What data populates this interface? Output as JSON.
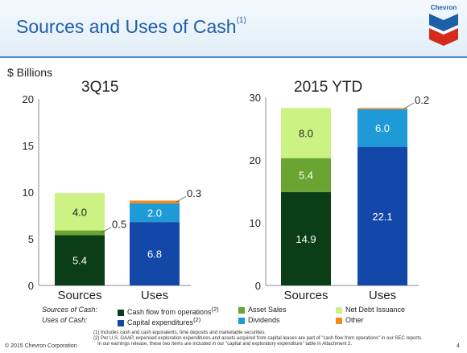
{
  "header": {
    "title": "Sources and Uses of Cash",
    "title_sup": "(1)",
    "logo_text": "Chevron"
  },
  "units_label": "$ Billions",
  "colors": {
    "cash_flow": "#0b3d16",
    "asset_sales": "#6aa431",
    "net_debt": "#ccf284",
    "capex": "#1448a8",
    "dividends": "#1e9ad6",
    "other": "#f48a1a"
  },
  "chart_data": [
    {
      "type": "bar",
      "stacked": true,
      "title": "3Q15",
      "categories": [
        "Sources",
        "Uses"
      ],
      "ylim": [
        0,
        20
      ],
      "yticks": [
        0,
        5,
        10,
        15,
        20
      ],
      "series": [
        {
          "name": "Cash flow from operations",
          "key": "cash_flow",
          "values": [
            5.4,
            0
          ]
        },
        {
          "name": "Asset Sales",
          "key": "asset_sales",
          "values": [
            0.5,
            0
          ]
        },
        {
          "name": "Net Debt Issuance",
          "key": "net_debt",
          "values": [
            4.0,
            0
          ]
        },
        {
          "name": "Capital expenditures",
          "key": "capex",
          "values": [
            0,
            6.8
          ]
        },
        {
          "name": "Dividends",
          "key": "dividends",
          "values": [
            0,
            2.0
          ]
        },
        {
          "name": "Other",
          "key": "other",
          "values": [
            0,
            0.3
          ]
        }
      ],
      "data_labels": [
        {
          "category": 0,
          "series": 0,
          "text": "5.4",
          "placement": "inside",
          "color": "#ffffff"
        },
        {
          "category": 0,
          "series": 1,
          "text": "0.5",
          "placement": "right",
          "color": "#222222"
        },
        {
          "category": 0,
          "series": 2,
          "text": "4.0",
          "placement": "inside",
          "color": "#222222"
        },
        {
          "category": 1,
          "series": 3,
          "text": "6.8",
          "placement": "inside",
          "color": "#ffffff"
        },
        {
          "category": 1,
          "series": 4,
          "text": "2.0",
          "placement": "inside",
          "color": "#ffffff"
        },
        {
          "category": 1,
          "series": 5,
          "text": "0.3",
          "placement": "right",
          "color": "#222222"
        }
      ]
    },
    {
      "type": "bar",
      "stacked": true,
      "title": "2015 YTD",
      "categories": [
        "Sources",
        "Uses"
      ],
      "ylim": [
        0,
        30
      ],
      "yticks": [
        0,
        10,
        20,
        30
      ],
      "series": [
        {
          "name": "Cash flow from operations",
          "key": "cash_flow",
          "values": [
            14.9,
            0
          ]
        },
        {
          "name": "Asset Sales",
          "key": "asset_sales",
          "values": [
            5.4,
            0
          ]
        },
        {
          "name": "Net Debt Issuance",
          "key": "net_debt",
          "values": [
            8.0,
            0
          ]
        },
        {
          "name": "Capital expenditures",
          "key": "capex",
          "values": [
            0,
            22.1
          ]
        },
        {
          "name": "Dividends",
          "key": "dividends",
          "values": [
            0,
            6.0
          ]
        },
        {
          "name": "Other",
          "key": "other",
          "values": [
            0,
            0.2
          ]
        }
      ],
      "data_labels": [
        {
          "category": 0,
          "series": 0,
          "text": "14.9",
          "placement": "inside",
          "color": "#ffffff"
        },
        {
          "category": 0,
          "series": 1,
          "text": "5.4",
          "placement": "inside",
          "color": "#ffffff"
        },
        {
          "category": 0,
          "series": 2,
          "text": "8.0",
          "placement": "inside",
          "color": "#222222"
        },
        {
          "category": 1,
          "series": 3,
          "text": "22.1",
          "placement": "inside",
          "color": "#ffffff"
        },
        {
          "category": 1,
          "series": 4,
          "text": "6.0",
          "placement": "inside",
          "color": "#ffffff"
        },
        {
          "category": 1,
          "series": 5,
          "text": "0.2",
          "placement": "right",
          "color": "#222222"
        }
      ]
    }
  ],
  "legend": {
    "sources_label": "Sources of Cash:",
    "uses_label": "Uses of Cash:",
    "sources_items": [
      {
        "key": "cash_flow",
        "text": "Cash flow from operations",
        "sup": "(2)"
      },
      {
        "key": "asset_sales",
        "text": "Asset Sales",
        "sup": ""
      },
      {
        "key": "net_debt",
        "text": "Net Debt Issuance",
        "sup": ""
      }
    ],
    "uses_items": [
      {
        "key": "capex",
        "text": "Capital expenditures",
        "sup": "(2)"
      },
      {
        "key": "dividends",
        "text": "Dividends",
        "sup": ""
      },
      {
        "key": "other",
        "text": "Other",
        "sup": ""
      }
    ]
  },
  "footnotes": {
    "note1": "(1) Includes cash and cash equivalents, time deposits and marketable securities.",
    "note2": "(2) Per U.S. GAAP, expensed exploration expenditures and assets acquired from capital leases are part of \"cash flow from operations\" in our SEC reports.",
    "note3": "In our earnings release, these two items are included in our \"capital and exploratory expenditure\" table in Attachment 2."
  },
  "footer": {
    "copyright": "© 2015 Chevron Corporation",
    "page": "4"
  }
}
